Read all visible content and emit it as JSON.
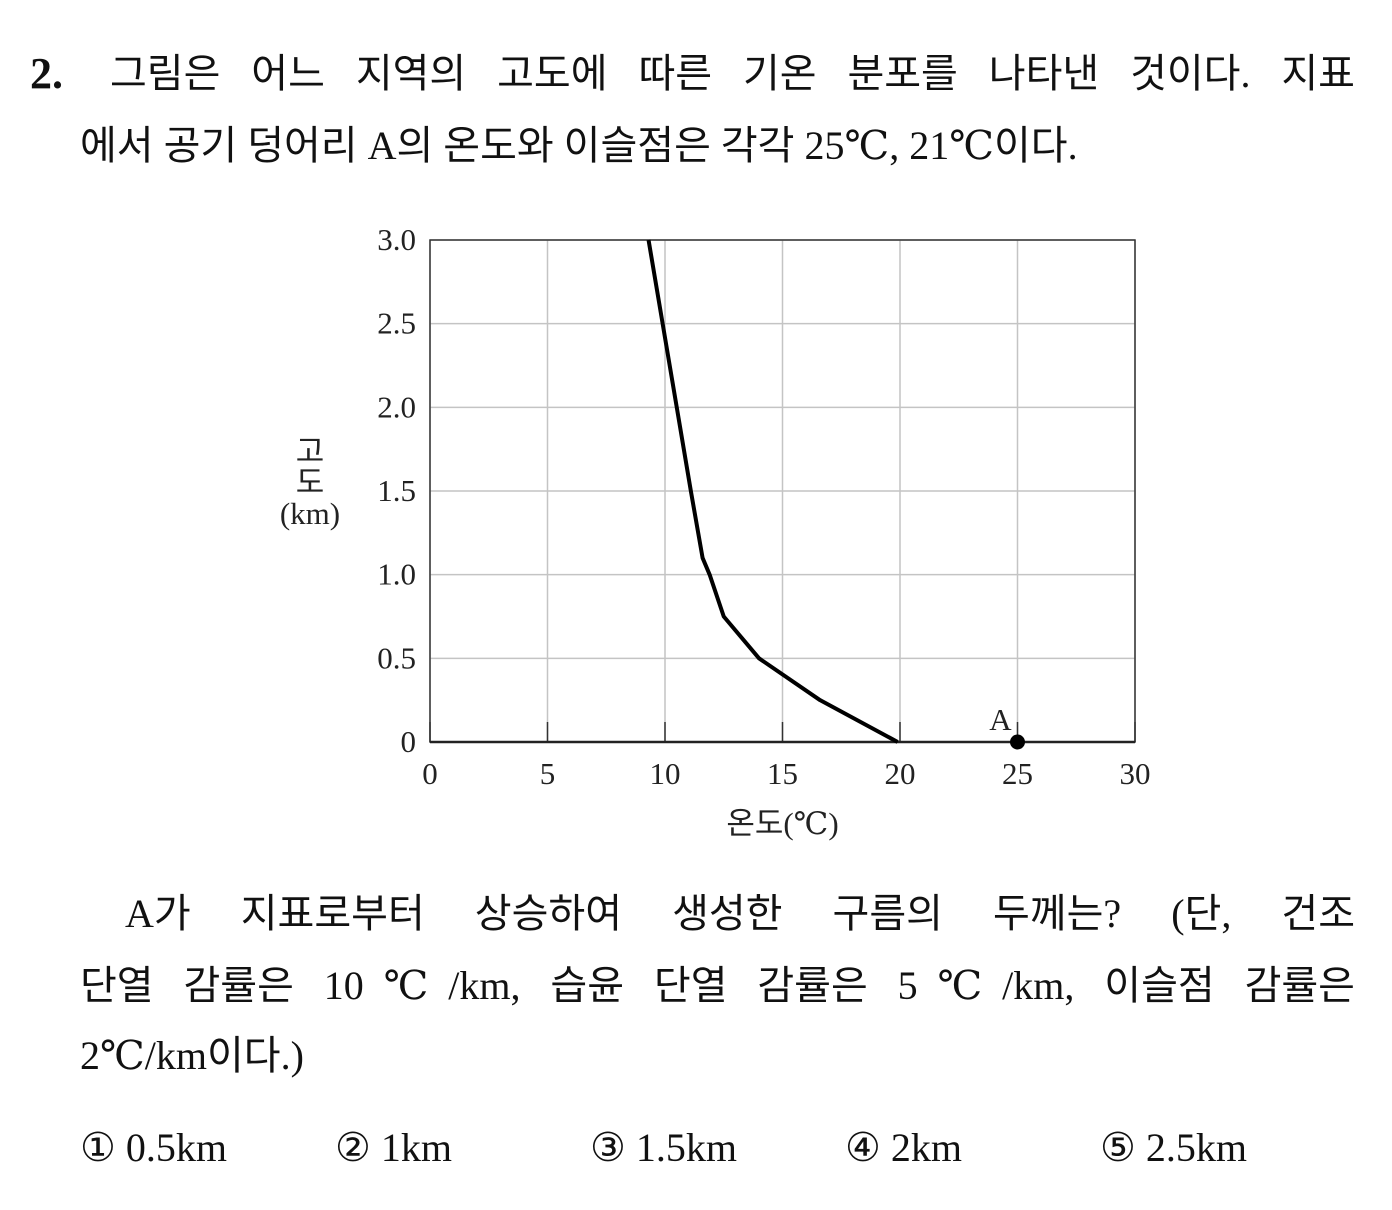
{
  "question": {
    "number": "2.",
    "lines": [
      "그림은 어느 지역의 고도에 따른 기온 분포를 나타낸 것이다. 지표",
      "에서 공기 덩어리 A의 온도와 이슬점은 각각 25℃, 21℃이다."
    ]
  },
  "chart_data": {
    "type": "line",
    "x_label": "온도(℃)",
    "y_label": [
      "고",
      "도",
      "(km)"
    ],
    "xlim": [
      0,
      30
    ],
    "ylim": [
      0,
      3
    ],
    "xticks": [
      0,
      5,
      10,
      15,
      20,
      25,
      30
    ],
    "yticks": [
      0,
      0.5,
      {
        "value": 1,
        "label": "1.0"
      },
      1.5,
      {
        "value": 2,
        "label": "2.0"
      },
      2.5,
      {
        "value": 3,
        "label": "3.0"
      }
    ],
    "grid": true,
    "series": [
      {
        "color": "#000000",
        "x": [
          9.3,
          9.9,
          10.5,
          11.1,
          11.6,
          11.9,
          12.5,
          14.0,
          16.6,
          19.9
        ],
        "values": [
          3.0,
          2.5,
          2.0,
          1.5,
          1.1,
          1.0,
          0.75,
          0.5,
          0.25,
          0
        ]
      }
    ],
    "points": [
      {
        "name": "A",
        "x": 25,
        "value": 0,
        "color": "#000000"
      }
    ]
  },
  "question2": {
    "lines": [
      "A가 지표로부터 상승하여 생성한 구름의 두께는? (단, 건조",
      "단열 감률은 10℃/km, 습윤 단열 감률은 5℃/km, 이슬점 감률은",
      "2℃/km이다.)"
    ]
  },
  "choices": [
    "① 0.5km",
    "② 1km",
    "③ 1.5km",
    "④ 2km",
    "⑤ 2.5km"
  ]
}
